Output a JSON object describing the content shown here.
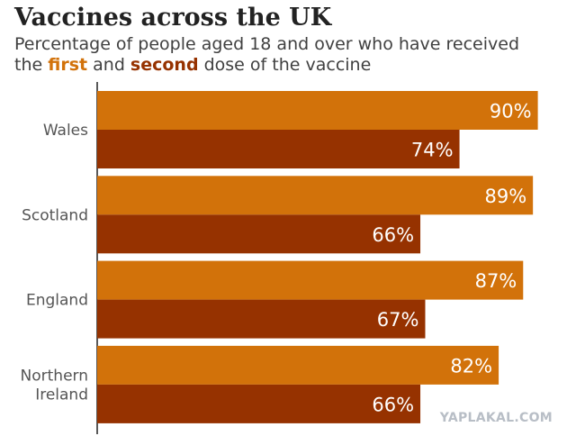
{
  "title": "Vaccines across the UK",
  "subtitle": {
    "line1": "Percentage of people aged 18 and over who have received",
    "pre": "the ",
    "first": "first",
    "mid": " and ",
    "second": "second",
    "post": " dose of the vaccine"
  },
  "colors": {
    "first": "#d2720a",
    "second": "#963200",
    "axis": "#222222",
    "label": "#555555"
  },
  "watermark": "YAPLAKAL.COM",
  "chart_data": {
    "type": "bar",
    "orientation": "horizontal",
    "categories": [
      [
        "Wales"
      ],
      [
        "Scotland"
      ],
      [
        "England"
      ],
      [
        "Northern",
        "Ireland"
      ]
    ],
    "series": [
      {
        "name": "first",
        "values": [
          90,
          89,
          87,
          82
        ]
      },
      {
        "name": "second",
        "values": [
          74,
          66,
          67,
          66
        ]
      }
    ],
    "value_labels": {
      "first": [
        "90%",
        "89%",
        "87%",
        "82%"
      ],
      "second": [
        "74%",
        "66%",
        "67%",
        "66%"
      ]
    },
    "xlim": [
      0,
      100
    ],
    "grid": false,
    "legend": "in subtitle"
  }
}
